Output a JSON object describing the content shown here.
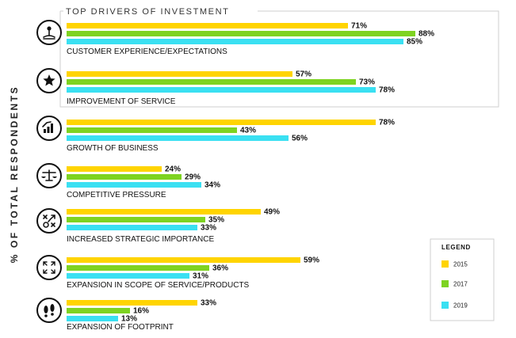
{
  "chart_data": {
    "type": "bar",
    "orientation": "horizontal",
    "title": "TOP DRIVERS OF INVESTMENT",
    "ylabel": "% OF TOTAL RESPONDENTS",
    "xlim": [
      0,
      100
    ],
    "value_suffix": "%",
    "categories": [
      "CUSTOMER EXPERIENCE/EXPECTATIONS",
      "IMPROVEMENT OF SERVICE",
      "GROWTH OF BUSINESS",
      "COMPETITIVE PRESSURE",
      "INCREASED STRATEGIC IMPORTANCE",
      "EXPANSION IN SCOPE OF SERVICE/PRODUCTS",
      "EXPANSION OF FOOTPRINT"
    ],
    "icons": [
      "customer-icon",
      "star-icon",
      "growth-chart-icon",
      "scales-icon",
      "strategy-icon",
      "expand-arrows-icon",
      "footprint-icon"
    ],
    "series": [
      {
        "name": "2015",
        "color": "#ffd400",
        "values": [
          71,
          57,
          78,
          24,
          49,
          59,
          33
        ]
      },
      {
        "name": "2017",
        "color": "#7ed321",
        "values": [
          88,
          73,
          43,
          29,
          35,
          36,
          16
        ]
      },
      {
        "name": "2019",
        "color": "#3ae0f2",
        "values": [
          85,
          78,
          56,
          34,
          33,
          31,
          13
        ]
      }
    ],
    "legend": {
      "title": "LEGEND",
      "placement": "bottom-right"
    },
    "grid": false
  }
}
